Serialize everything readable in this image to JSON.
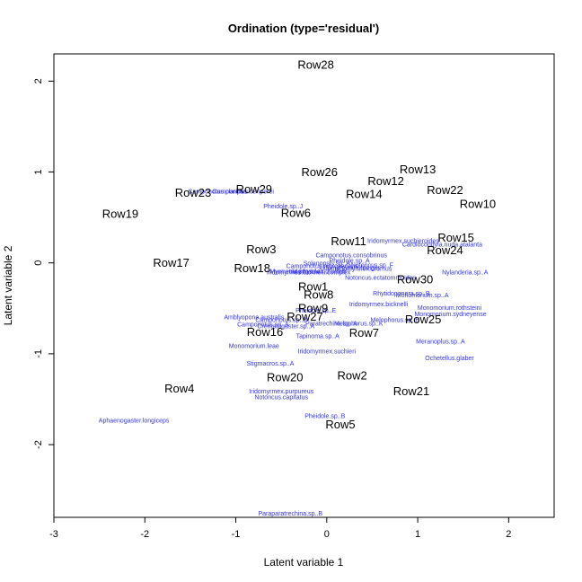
{
  "chart_data": {
    "type": "scatter",
    "title": "Ordination (type='residual')",
    "xlabel": "Latent variable 1",
    "ylabel": "Latent variable 2",
    "xlim": [
      -3.0,
      2.5
    ],
    "ylim": [
      -2.8,
      2.3
    ],
    "xticks": [
      -3,
      -2,
      -1,
      0,
      1,
      2
    ],
    "yticks": [
      -2,
      -1,
      0,
      1,
      2
    ],
    "grid": false,
    "colors": {
      "sites": "#000000",
      "species": "#3333ee"
    },
    "sites": [
      {
        "label": "Row28",
        "x": -0.12,
        "y": 2.17
      },
      {
        "label": "Row26",
        "x": -0.08,
        "y": 0.99
      },
      {
        "label": "Row13",
        "x": 1.0,
        "y": 1.02
      },
      {
        "label": "Row12",
        "x": 0.65,
        "y": 0.89
      },
      {
        "label": "Row29",
        "x": -0.8,
        "y": 0.8
      },
      {
        "label": "Row22",
        "x": 1.3,
        "y": 0.79
      },
      {
        "label": "Row23",
        "x": -1.47,
        "y": 0.76
      },
      {
        "label": "Row14",
        "x": 0.41,
        "y": 0.75
      },
      {
        "label": "Row10",
        "x": 1.66,
        "y": 0.64
      },
      {
        "label": "Row6",
        "x": -0.34,
        "y": 0.54
      },
      {
        "label": "Row19",
        "x": -2.27,
        "y": 0.53
      },
      {
        "label": "Row15",
        "x": 1.42,
        "y": 0.27
      },
      {
        "label": "Row11",
        "x": 0.24,
        "y": 0.23
      },
      {
        "label": "Row24",
        "x": 1.3,
        "y": 0.13
      },
      {
        "label": "Row3",
        "x": -0.72,
        "y": 0.14
      },
      {
        "label": "Row17",
        "x": -1.71,
        "y": -0.01
      },
      {
        "label": "Row18",
        "x": -0.82,
        "y": -0.07
      },
      {
        "label": "Row30",
        "x": 0.97,
        "y": -0.19
      },
      {
        "label": "Row1",
        "x": -0.15,
        "y": -0.27
      },
      {
        "label": "Row8",
        "x": -0.09,
        "y": -0.36
      },
      {
        "label": "Row9",
        "x": -0.15,
        "y": -0.51
      },
      {
        "label": "Row27",
        "x": -0.24,
        "y": -0.6
      },
      {
        "label": "Row25",
        "x": 1.06,
        "y": -0.63
      },
      {
        "label": "Row16",
        "x": -0.68,
        "y": -0.77
      },
      {
        "label": "Row7",
        "x": 0.41,
        "y": -0.78
      },
      {
        "label": "Row20",
        "x": -0.46,
        "y": -1.27
      },
      {
        "label": "Row2",
        "x": 0.28,
        "y": -1.25
      },
      {
        "label": "Row4",
        "x": -1.62,
        "y": -1.39
      },
      {
        "label": "Row21",
        "x": 0.93,
        "y": -1.42
      },
      {
        "label": "Row5",
        "x": 0.15,
        "y": -1.79
      }
    ],
    "species": [
      {
        "label": "Camponotus.claripes",
        "x": -1.2,
        "y": 0.78
      },
      {
        "label": "Camponotus.ceriperei",
        "x": -0.92,
        "y": 0.78
      },
      {
        "label": "Pheidole.sp..J",
        "x": -0.48,
        "y": 0.62
      },
      {
        "label": "Iridomyrmex.suchieroides",
        "x": 0.84,
        "y": 0.24
      },
      {
        "label": "Cardiocondyla.nuda.atalanta",
        "x": 1.27,
        "y": 0.2
      },
      {
        "label": "Camponotus.consobrinus",
        "x": 0.27,
        "y": 0.08
      },
      {
        "label": "Pheidole.sp..A",
        "x": 0.25,
        "y": 0.02
      },
      {
        "label": "Notoncus.sp..F",
        "x": 0.5,
        "y": -0.03
      },
      {
        "label": "Camponotus.nigroaeneus",
        "x": -0.05,
        "y": -0.04
      },
      {
        "label": "Solenopsis.sp..A",
        "x": 0.0,
        "y": -0.01
      },
      {
        "label": "Iridomyrmex.rufoniger",
        "x": 0.25,
        "y": -0.06
      },
      {
        "label": "Iridomyrmex.dromus",
        "x": 0.4,
        "y": -0.07
      },
      {
        "label": "Myrmecia.pilosula",
        "x": -0.35,
        "y": -0.1
      },
      {
        "label": "Iridomyrmex.bicknelli.complex",
        "x": -0.2,
        "y": -0.11
      },
      {
        "label": "Iridomyrmex.dromus",
        "x": -0.1,
        "y": -0.1
      },
      {
        "label": "Nylanderia.sp..A",
        "x": 1.52,
        "y": -0.11
      },
      {
        "label": "Notoncus.ectatommoides",
        "x": 0.59,
        "y": -0.17
      },
      {
        "label": "Rhytidoponera.sp..B",
        "x": 0.82,
        "y": -0.34
      },
      {
        "label": "Monomorium.sp..A",
        "x": 1.05,
        "y": -0.36
      },
      {
        "label": "Iridomyrmex.bicknelli",
        "x": 0.57,
        "y": -0.46
      },
      {
        "label": "Monomorium.rothsteini",
        "x": 1.35,
        "y": -0.5
      },
      {
        "label": "Pheidole.sp..E",
        "x": -0.12,
        "y": -0.53
      },
      {
        "label": "Monomorium.sydneyense",
        "x": 1.36,
        "y": -0.57
      },
      {
        "label": "Amblyopone.australis",
        "x": -0.8,
        "y": -0.6
      },
      {
        "label": "Camponotus.sp..B",
        "x": -0.5,
        "y": -0.63
      },
      {
        "label": "Melophorus.sp..E",
        "x": 0.75,
        "y": -0.63
      },
      {
        "label": "Melophorus.sp..K",
        "x": 0.35,
        "y": -0.67
      },
      {
        "label": "Paratrechina.sp..A",
        "x": 0.05,
        "y": -0.67
      },
      {
        "label": "Camponotus.sp..A",
        "x": -0.7,
        "y": -0.68
      },
      {
        "label": "Crematogaster.sp..A",
        "x": -0.45,
        "y": -0.7
      },
      {
        "label": "Tapinoma.sp..A",
        "x": -0.1,
        "y": -0.81
      },
      {
        "label": "Meranoplus.sp..A",
        "x": 1.25,
        "y": -0.87
      },
      {
        "label": "Monomorium.leae",
        "x": -0.8,
        "y": -0.92
      },
      {
        "label": "Iridomyrmex.suchieri",
        "x": 0.0,
        "y": -0.98
      },
      {
        "label": "Ochetellus.glaber",
        "x": 1.35,
        "y": -1.05
      },
      {
        "label": "Stigmacros.sp..A",
        "x": -0.62,
        "y": -1.11
      },
      {
        "label": "Iridomyrmex.purpureus",
        "x": -0.5,
        "y": -1.42
      },
      {
        "label": "Notoncus.capitatus",
        "x": -0.5,
        "y": -1.48
      },
      {
        "label": "Aphaenogaster.longiceps",
        "x": -2.12,
        "y": -1.74
      },
      {
        "label": "Pheidole.sp..B",
        "x": -0.02,
        "y": -1.69
      },
      {
        "label": "Paraparatrechina.sp..B",
        "x": -0.4,
        "y": -2.76
      }
    ]
  }
}
